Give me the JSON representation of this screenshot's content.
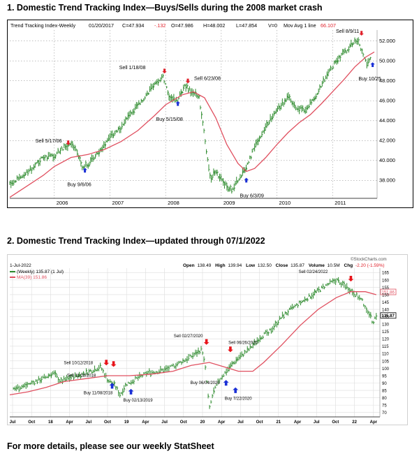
{
  "headings": {
    "h1": "1. Domestic Trend Tracking Index—Buys/Sells during the 2008 market crash",
    "h2": "2. Domestic Trend Tracking Index—updated through 07/1/2022",
    "footer": "For more details, please see our weekly StatSheet"
  },
  "chart1_header": {
    "name": "Trend Tracking Index-Weekly",
    "date": "01/20/2017",
    "close": "C=47.934",
    "change": "-.132",
    "open": "O=47.986",
    "high": "H=48.002",
    "low": "L=47.854",
    "volume": "V=0",
    "ma_label": "Mov Avg 1 line",
    "ma_value": "66.107"
  },
  "chart2_header": {
    "date": "1-Jul-2022",
    "watermark": "©StockCharts.com",
    "open_label": "Open",
    "open": "138.49",
    "high_label": "High",
    "high": "139.94",
    "low_label": "Low",
    "low": "132.50",
    "close_label": "Close",
    "close": "135.87",
    "volume_label": "Volume",
    "volume": "10.5M",
    "chg_label": "Chg",
    "chg": "-2.20 (-1.59%)",
    "series_legend": "(Weekly) 135.87 (1 Jul)",
    "ma_legend": "MA(39) 151.86",
    "last_price": "135.87",
    "ma_price": "151.86"
  },
  "colors": {
    "price": "#2e8b2e",
    "ma": "#e05060",
    "buy_arrow": "#1a2fd6",
    "sell_arrow_1": "#e0202a",
    "sell_arrow_2": "#e8141a",
    "change_neg": "#e0202a",
    "grid": "#9a9a9a",
    "chart2_grid": "#dddddd"
  },
  "chart_data": [
    {
      "type": "line",
      "title": "Trend Tracking Index-Weekly",
      "xlabel": "",
      "ylabel": "",
      "x_ticks": [
        "2006",
        "2007",
        "2008",
        "2009",
        "2010",
        "2011"
      ],
      "y_ticks": [
        38,
        40,
        42,
        44,
        46,
        48,
        50,
        52
      ],
      "ylim": [
        36.2,
        53.1
      ],
      "xlim": [
        2005.2,
        2011.8
      ],
      "y_axis_side": "right",
      "grid": true,
      "series": [
        {
          "name": "",
          "style": "ohlc-bars",
          "points": [
            [
              2005.2,
              37.6
            ],
            [
              2005.4,
              38.5
            ],
            [
              2005.6,
              39.2
            ],
            [
              2005.8,
              40.3
            ],
            [
              2006.0,
              40.5
            ],
            [
              2006.15,
              41.2
            ],
            [
              2006.3,
              41.7
            ],
            [
              2006.4,
              41.0
            ],
            [
              2006.5,
              39.4
            ],
            [
              2006.6,
              39.6
            ],
            [
              2006.8,
              40.8
            ],
            [
              2007.0,
              42.4
            ],
            [
              2007.2,
              43.3
            ],
            [
              2007.4,
              44.9
            ],
            [
              2007.6,
              46.1
            ],
            [
              2007.8,
              47.8
            ],
            [
              2007.95,
              48.4
            ],
            [
              2008.05,
              46.6
            ],
            [
              2008.2,
              45.9
            ],
            [
              2008.35,
              47.6
            ],
            [
              2008.45,
              46.9
            ],
            [
              2008.6,
              46.4
            ],
            [
              2008.7,
              42.5
            ],
            [
              2008.8,
              38.2
            ],
            [
              2008.9,
              38.9
            ],
            [
              2009.0,
              38.1
            ],
            [
              2009.1,
              37.4
            ],
            [
              2009.2,
              36.9
            ],
            [
              2009.3,
              38.1
            ],
            [
              2009.45,
              39.3
            ],
            [
              2009.6,
              41.4
            ],
            [
              2009.8,
              43.4
            ],
            [
              2010.0,
              45.1
            ],
            [
              2010.2,
              46.3
            ],
            [
              2010.35,
              45.4
            ],
            [
              2010.5,
              45.0
            ],
            [
              2010.7,
              46.6
            ],
            [
              2010.9,
              48.6
            ],
            [
              2011.1,
              50.2
            ],
            [
              2011.3,
              51.4
            ],
            [
              2011.45,
              52.2
            ],
            [
              2011.55,
              50.6
            ],
            [
              2011.62,
              49.6
            ],
            [
              2011.68,
              50.3
            ]
          ]
        },
        {
          "name": "",
          "style": "line",
          "points": [
            [
              2005.2,
              36.3
            ],
            [
              2005.5,
              37.4
            ],
            [
              2005.8,
              38.5
            ],
            [
              2006.0,
              39.4
            ],
            [
              2006.3,
              40.3
            ],
            [
              2006.6,
              40.6
            ],
            [
              2006.9,
              41.1
            ],
            [
              2007.2,
              41.9
            ],
            [
              2007.5,
              43.0
            ],
            [
              2007.8,
              44.5
            ],
            [
              2008.0,
              45.6
            ],
            [
              2008.3,
              46.6
            ],
            [
              2008.5,
              46.9
            ],
            [
              2008.7,
              46.3
            ],
            [
              2008.9,
              44.3
            ],
            [
              2009.1,
              41.6
            ],
            [
              2009.3,
              39.7
            ],
            [
              2009.45,
              38.9
            ],
            [
              2009.6,
              39.2
            ],
            [
              2009.8,
              40.3
            ],
            [
              2010.0,
              41.6
            ],
            [
              2010.2,
              42.8
            ],
            [
              2010.4,
              43.8
            ],
            [
              2010.6,
              44.6
            ],
            [
              2010.8,
              45.7
            ],
            [
              2011.0,
              46.9
            ],
            [
              2011.2,
              48.1
            ],
            [
              2011.4,
              49.4
            ],
            [
              2011.6,
              50.4
            ],
            [
              2011.75,
              50.9
            ]
          ]
        }
      ],
      "annotations": [
        {
          "text": "Sell 5/17/06",
          "kind": "sell",
          "x": 2006.25,
          "y": 41.4
        },
        {
          "text": "Buy 9/6/06",
          "kind": "buy",
          "x": 2006.55,
          "y": 39.4
        },
        {
          "text": "Sell 1/18/08",
          "kind": "sell",
          "x": 2007.98,
          "y": 48.6
        },
        {
          "text": "Buy 5/15/08",
          "kind": "buy",
          "x": 2008.22,
          "y": 46.1
        },
        {
          "text": "Sell 6/23/08",
          "kind": "sell",
          "x": 2008.4,
          "y": 47.6
        },
        {
          "text": "Buy 6/3/09",
          "kind": "buy",
          "x": 2009.45,
          "y": 38.4
        },
        {
          "text": "Sell 8/9/11",
          "kind": "sell",
          "x": 2011.52,
          "y": 52.4
        },
        {
          "text": "Buy 10/25",
          "kind": "buy",
          "x": 2011.72,
          "y": 50.0
        }
      ]
    },
    {
      "type": "line",
      "title": "",
      "xlabel": "",
      "ylabel": "",
      "x_ticks": [
        "Jul",
        "Oct",
        "18",
        "Apr",
        "Jul",
        "Oct",
        "19",
        "Apr",
        "Jul",
        "Oct",
        "20",
        "Apr",
        "Jul",
        "Oct",
        "21",
        "Apr",
        "Jul",
        "Oct",
        "22",
        "Apr"
      ],
      "y_ticks": [
        70,
        75,
        80,
        85,
        90,
        95,
        100,
        105,
        110,
        115,
        120,
        125,
        130,
        135,
        140,
        145,
        150,
        155,
        160,
        165
      ],
      "ylim": [
        67,
        168
      ],
      "xlim": [
        2017.45,
        2022.55
      ],
      "y_axis_side": "right",
      "grid": true,
      "series": [
        {
          "name": "(Weekly) 135.87 (1 Jul)",
          "style": "ohlc-bars",
          "points": [
            [
              2017.5,
              86
            ],
            [
              2017.65,
              88
            ],
            [
              2017.8,
              91
            ],
            [
              2017.95,
              94
            ],
            [
              2018.05,
              97
            ],
            [
              2018.15,
              91
            ],
            [
              2018.3,
              94
            ],
            [
              2018.45,
              96
            ],
            [
              2018.6,
              99
            ],
            [
              2018.7,
              101
            ],
            [
              2018.8,
              92
            ],
            [
              2018.9,
              88
            ],
            [
              2018.97,
              82
            ],
            [
              2019.05,
              89
            ],
            [
              2019.2,
              93
            ],
            [
              2019.35,
              97
            ],
            [
              2019.5,
              98
            ],
            [
              2019.65,
              100
            ],
            [
              2019.8,
              104
            ],
            [
              2019.95,
              108
            ],
            [
              2020.1,
              113
            ],
            [
              2020.15,
              98
            ],
            [
              2020.2,
              72
            ],
            [
              2020.25,
              83
            ],
            [
              2020.35,
              93
            ],
            [
              2020.5,
              102
            ],
            [
              2020.6,
              107
            ],
            [
              2020.75,
              113
            ],
            [
              2020.9,
              121
            ],
            [
              2021.05,
              126
            ],
            [
              2021.2,
              135
            ],
            [
              2021.35,
              141
            ],
            [
              2021.5,
              146
            ],
            [
              2021.65,
              151
            ],
            [
              2021.8,
              156
            ],
            [
              2021.95,
              160
            ],
            [
              2022.05,
              157
            ],
            [
              2022.2,
              151
            ],
            [
              2022.3,
              146
            ],
            [
              2022.4,
              138
            ],
            [
              2022.45,
              131
            ],
            [
              2022.5,
              136
            ]
          ]
        },
        {
          "name": "MA(39) 151.86",
          "style": "line",
          "points": [
            [
              2017.45,
              82
            ],
            [
              2017.7,
              84
            ],
            [
              2017.95,
              87
            ],
            [
              2018.2,
              91
            ],
            [
              2018.5,
              93
            ],
            [
              2018.8,
              95
            ],
            [
              2019.1,
              95
            ],
            [
              2019.4,
              96
            ],
            [
              2019.7,
              98
            ],
            [
              2019.95,
              102
            ],
            [
              2020.2,
              104
            ],
            [
              2020.4,
              101
            ],
            [
              2020.6,
              98
            ],
            [
              2020.8,
              98
            ],
            [
              2020.95,
              104
            ],
            [
              2021.2,
              116
            ],
            [
              2021.45,
              129
            ],
            [
              2021.7,
              140
            ],
            [
              2021.95,
              148
            ],
            [
              2022.15,
              152
            ],
            [
              2022.35,
              152
            ],
            [
              2022.5,
              150
            ]
          ]
        }
      ],
      "annotations": [
        {
          "text": "Sell 10/12/2018",
          "kind": "sell",
          "x": 2018.78,
          "y": 101
        },
        {
          "text": "Buy 11/08/2018",
          "kind": "buy",
          "x": 2018.86,
          "y": 91
        },
        {
          "text": "Sell 11/15/2018",
          "kind": "sell",
          "x": 2018.88,
          "y": 100
        },
        {
          "text": "Buy 02/13/2019",
          "kind": "buy",
          "x": 2019.12,
          "y": 87
        },
        {
          "text": "Sell 02/27/2020",
          "kind": "sell",
          "x": 2020.16,
          "y": 115
        },
        {
          "text": "Buy 06/04/2020",
          "kind": "buy",
          "x": 2020.43,
          "y": 93
        },
        {
          "text": "Sell 06/26/2020",
          "kind": "sell",
          "x": 2020.49,
          "y": 110
        },
        {
          "text": "Buy 7/22/2020",
          "kind": "buy",
          "x": 2020.56,
          "y": 88
        },
        {
          "text": "Sell 02/24/2022",
          "kind": "sell",
          "x": 2022.15,
          "y": 158
        }
      ]
    }
  ]
}
